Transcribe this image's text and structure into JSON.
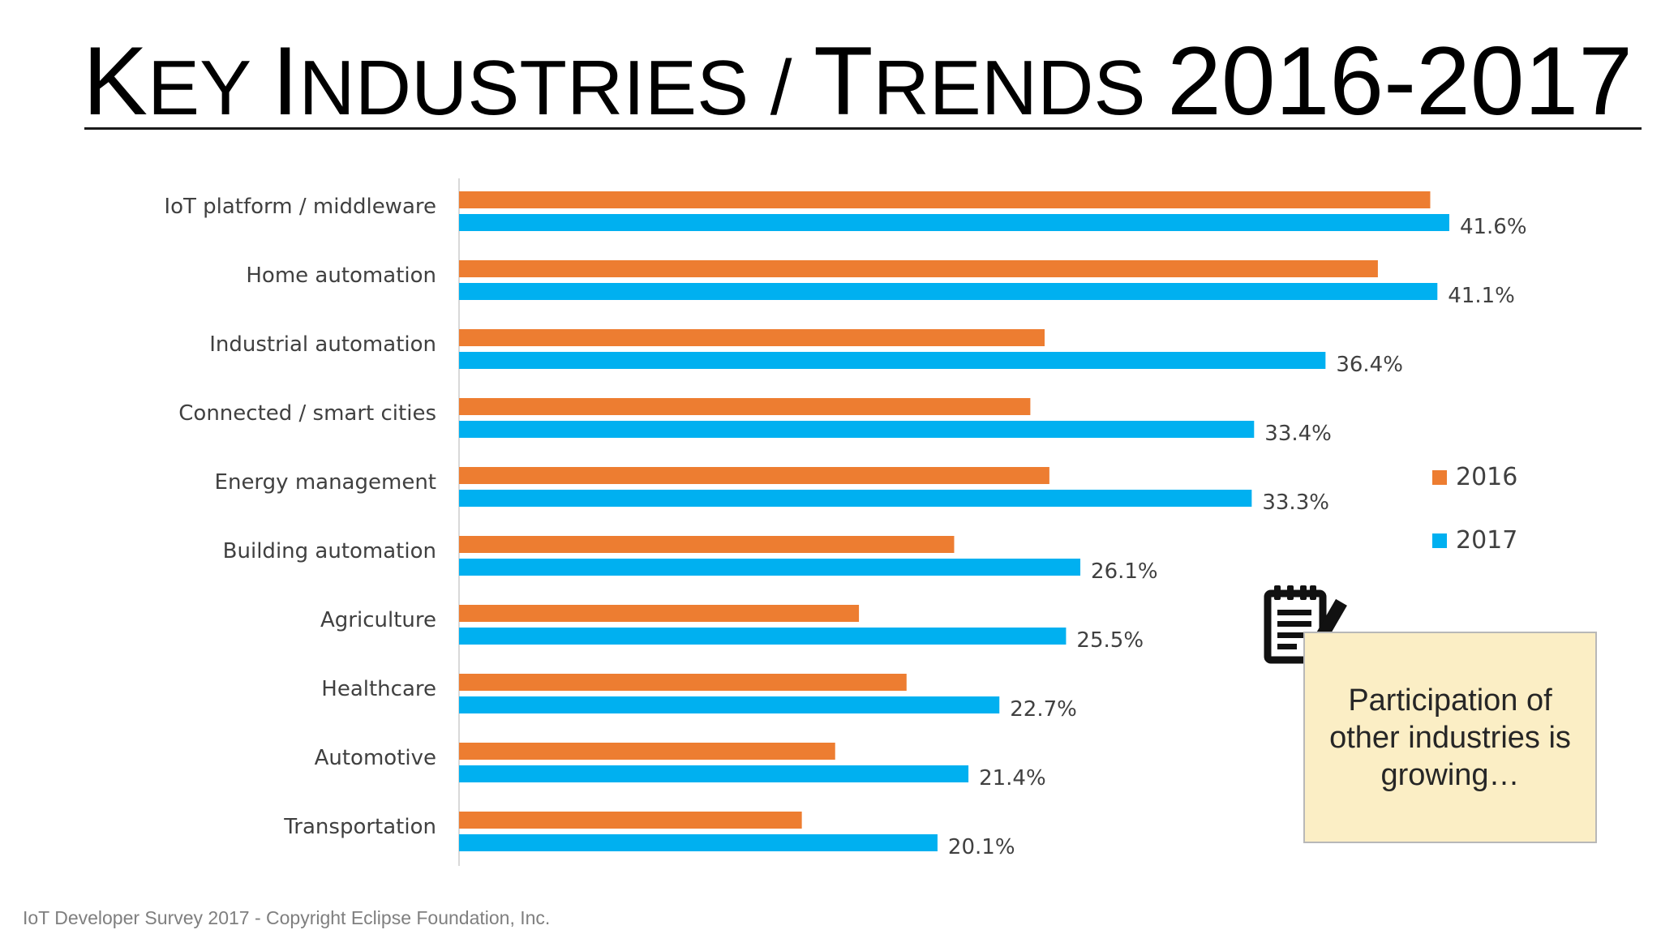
{
  "slide": {
    "title_parts": [
      "K",
      "EY ",
      "I",
      "NDUSTRIES / ",
      "T",
      "RENDS ",
      "2016-2017"
    ],
    "callout_text": "Participation of other industries is growing…",
    "footer": "IoT Developer Survey 2017 - Copyright Eclipse Foundation, Inc."
  },
  "icons": {
    "callout": "notepad-pencil-icon"
  },
  "colors": {
    "series_2016": "#ed7d31",
    "series_2017": "#00b0f0",
    "callout_bg": "#fbeec5"
  },
  "chart_data": {
    "type": "bar",
    "orientation": "horizontal",
    "categories": [
      "IoT platform / middleware",
      "Home automation",
      "Industrial automation",
      "Connected / smart cities",
      "Energy management",
      "Building automation",
      "Agriculture",
      "Healthcare",
      "Automotive",
      "Transportation"
    ],
    "series": [
      {
        "name": "2016",
        "color": "#ed7d31",
        "values": [
          40.8,
          38.6,
          24.6,
          24.0,
          24.8,
          20.8,
          16.8,
          18.8,
          15.8,
          14.4
        ]
      },
      {
        "name": "2017",
        "color": "#00b0f0",
        "values": [
          41.6,
          41.1,
          36.4,
          33.4,
          33.3,
          26.1,
          25.5,
          22.7,
          21.4,
          20.1
        ],
        "value_labels": [
          "41.6%",
          "41.1%",
          "36.4%",
          "33.4%",
          "33.3%",
          "26.1%",
          "25.5%",
          "22.7%",
          "21.4%",
          "20.1%"
        ]
      }
    ],
    "xlim": [
      0,
      45
    ],
    "grid": false,
    "legend_position": "right"
  }
}
